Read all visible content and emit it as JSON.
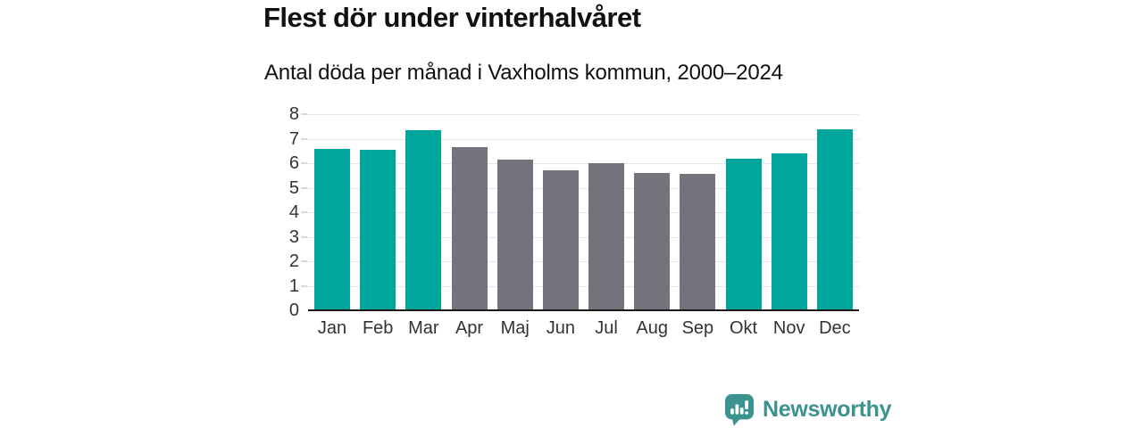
{
  "chart_data": {
    "type": "bar",
    "title": "Flest dör under vinterhalvåret",
    "subtitle": "Antal döda per månad i Vaxholms kommun, 2000–2024",
    "categories": [
      "Jan",
      "Feb",
      "Mar",
      "Apr",
      "Maj",
      "Jun",
      "Jul",
      "Aug",
      "Sep",
      "Okt",
      "Nov",
      "Dec"
    ],
    "values": [
      6.6,
      6.55,
      7.35,
      6.65,
      6.15,
      5.7,
      6.0,
      5.6,
      5.55,
      6.2,
      6.4,
      7.4
    ],
    "bar_colors": [
      "#00a59b",
      "#00a59b",
      "#00a59b",
      "#73737c",
      "#73737c",
      "#73737c",
      "#73737c",
      "#73737c",
      "#73737c",
      "#00a59b",
      "#00a59b",
      "#00a59b"
    ],
    "xlabel": "",
    "ylabel": "",
    "ylim": [
      0,
      8
    ],
    "yticks": [
      0,
      1,
      2,
      3,
      4,
      5,
      6,
      7,
      8
    ],
    "grid": "horizontal",
    "legend": "none",
    "colors": {
      "winter_bars": "#00a59b",
      "summer_bars": "#73737c",
      "gridline": "#e6e6e6",
      "tick_dash": "#d9d9d9",
      "axis_line": "#1a1a1a",
      "tick_text": "#333333"
    }
  },
  "branding": {
    "logo_text": "Newsworthy",
    "logo_color": "#3b9390"
  }
}
